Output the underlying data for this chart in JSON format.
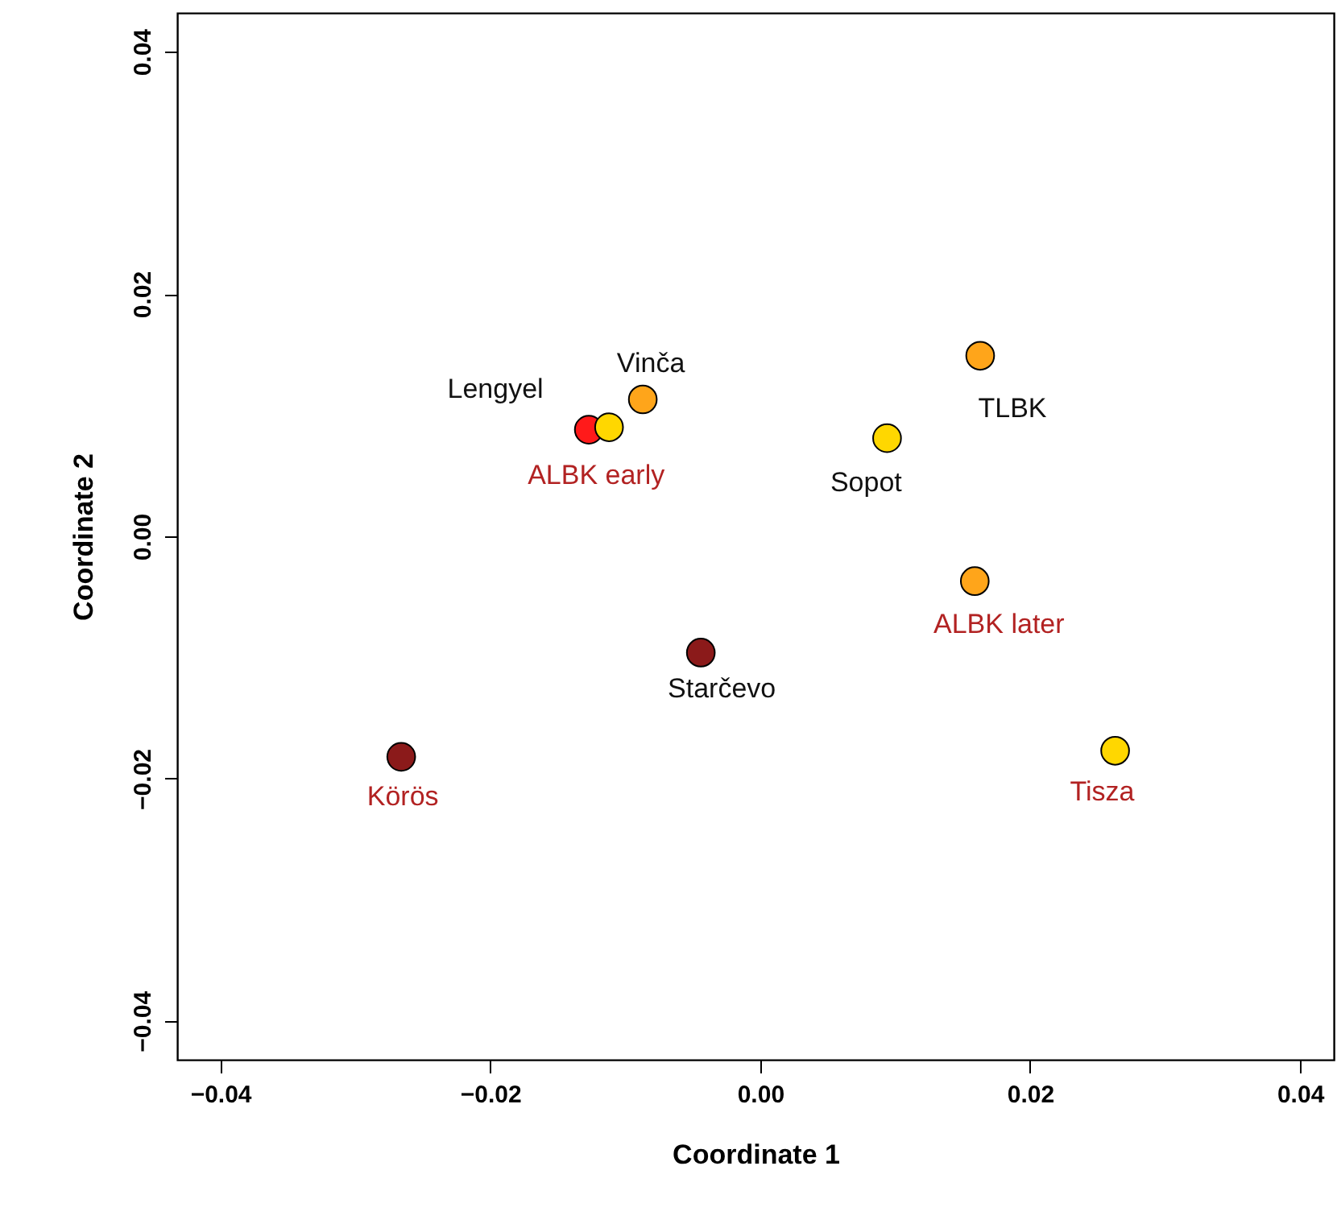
{
  "chart_data": {
    "type": "scatter",
    "xlabel": "Coordinate 1",
    "ylabel": "Coordinate 2",
    "xlim": [
      -0.0432,
      0.0425
    ],
    "ylim": [
      -0.0432,
      0.0432
    ],
    "xticks": [
      {
        "value": -0.04,
        "label": "−0.04"
      },
      {
        "value": -0.02,
        "label": "−0.02"
      },
      {
        "value": 0,
        "label": "0.00"
      },
      {
        "value": 0.02,
        "label": "0.02"
      },
      {
        "value": 0.04,
        "label": "0.04"
      }
    ],
    "yticks": [
      {
        "value": -0.04,
        "label": "−0.04"
      },
      {
        "value": -0.02,
        "label": "−0.02"
      },
      {
        "value": 0,
        "label": "0.00"
      },
      {
        "value": 0.02,
        "label": "0.02"
      },
      {
        "value": 0.04,
        "label": "0.04"
      }
    ],
    "grid": false,
    "marker": "circle",
    "series": [
      {
        "x": [
          -0.0127,
          -0.0087,
          0.0094,
          0.0163,
          -0.0044
        ],
        "values": [
          0.0088,
          0.0113,
          0.0081,
          0.0149,
          -0.0096
        ],
        "colors": [
          "#ff1a1a",
          "#ffa51a",
          "#ffd700",
          "#ffa51a",
          "#8b1a1a"
        ],
        "value_labels": [
          "Lengyel",
          "Vinča",
          "Sopot",
          "TLBK",
          "Starčevo"
        ]
      },
      {
        "x": [
          -0.0112,
          0.0159,
          0.0263,
          -0.0266
        ],
        "values": [
          0.009,
          -0.0037,
          -0.0177,
          -0.0182
        ],
        "colors": [
          "#ffd700",
          "#ffa51a",
          "#ffd700",
          "#8b1a1a"
        ],
        "value_labels": [
          "ALBK early",
          "ALBK later",
          "Tisza",
          "Körös"
        ]
      }
    ]
  }
}
